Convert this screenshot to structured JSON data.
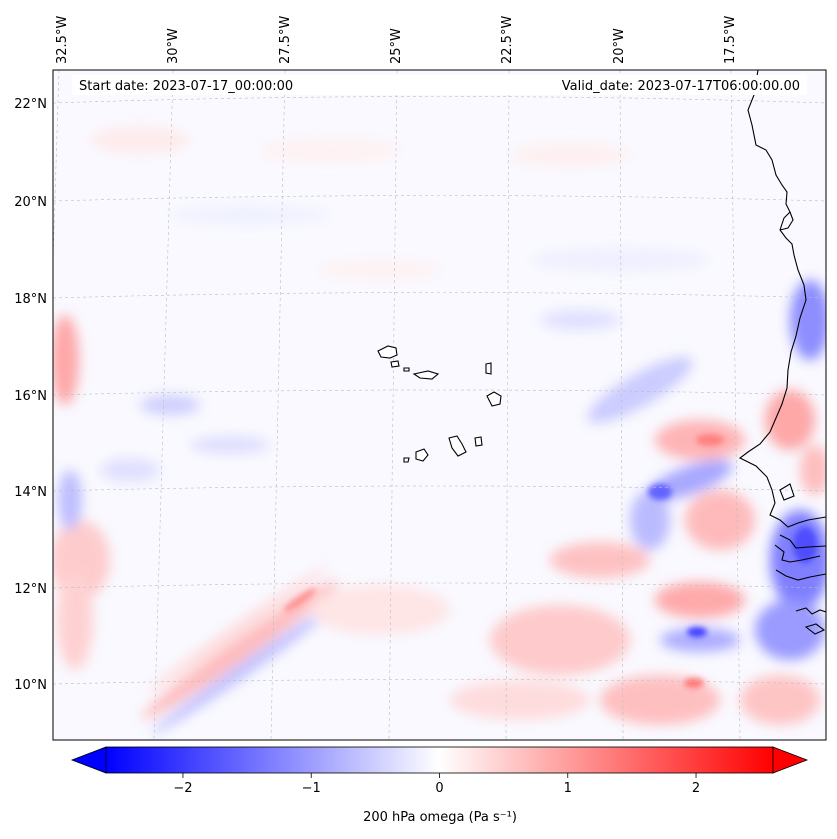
{
  "header": {
    "start_date": "Start date: 2023-07-17_00:00:00",
    "valid_date": "Valid_date: 2023-07-17T06:00:00.00"
  },
  "map": {
    "projection": "Lambert conformal (curved meridians)",
    "lon_labels": [
      "32.5°W",
      "30°W",
      "27.5°W",
      "25°W",
      "22.5°W",
      "20°W",
      "17.5°W"
    ],
    "lat_labels": [
      "22°N",
      "20°N",
      "18°N",
      "16°N",
      "14°N",
      "12°N",
      "10°N"
    ],
    "gridlines": true,
    "features": [
      "African coastline (Senegal / Mauritania / Gambia / Guinea-Bissau)",
      "Cape Verde islands"
    ]
  },
  "colorbar": {
    "label": "200 hPa omega (Pa s⁻¹)",
    "ticks": [
      "−2",
      "−1",
      "0",
      "1",
      "2"
    ],
    "tick_values": [
      -2,
      -1,
      0,
      1,
      2
    ],
    "range": [
      -2.6,
      2.6
    ],
    "extend": "both",
    "cmap": "bwr",
    "colors": {
      "negative": "#0000ff",
      "zero": "#ffffff",
      "positive": "#ff0000"
    }
  }
}
